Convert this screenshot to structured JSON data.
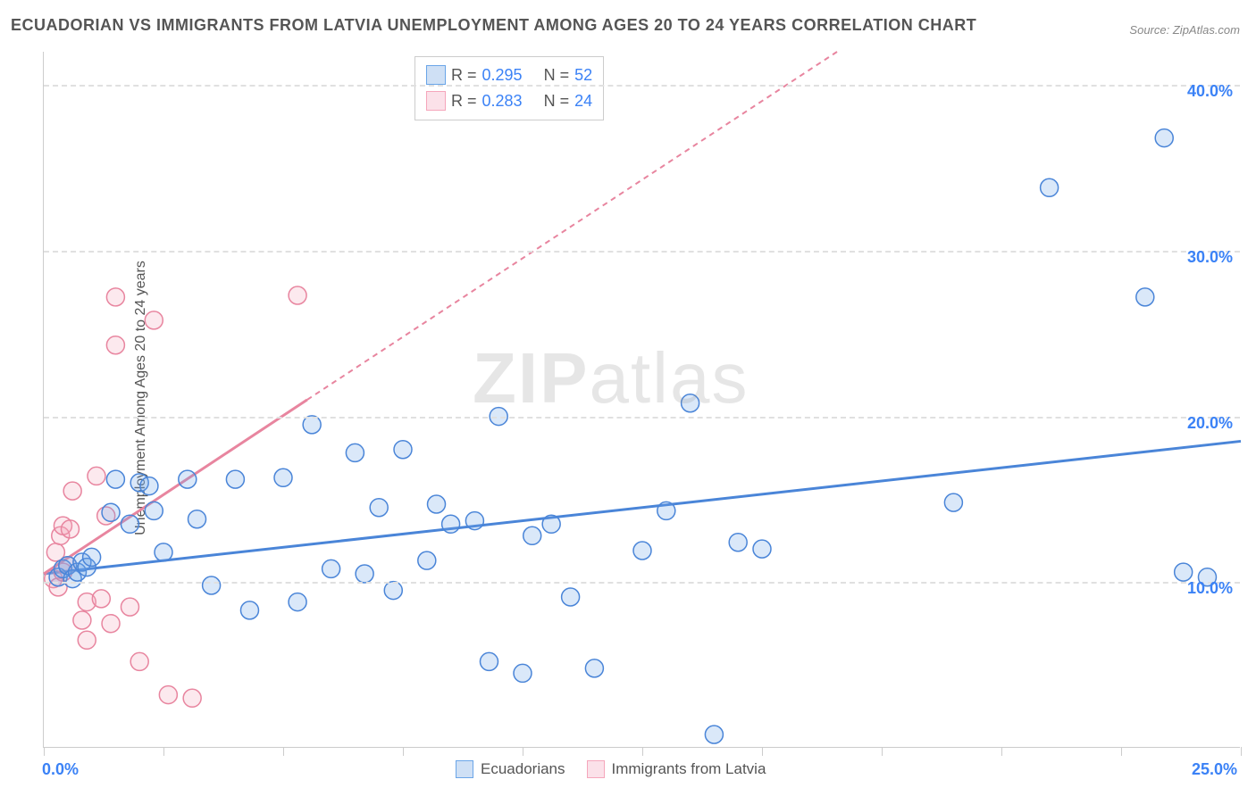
{
  "title": "ECUADORIAN VS IMMIGRANTS FROM LATVIA UNEMPLOYMENT AMONG AGES 20 TO 24 YEARS CORRELATION CHART",
  "source_label": "Source:",
  "source_link": "ZipAtlas.com",
  "y_axis_label": "Unemployment Among Ages 20 to 24 years",
  "watermark": "ZIPatlas",
  "chart": {
    "type": "scatter",
    "background_color": "#ffffff",
    "grid_color": "#e0e0e0",
    "axis_color": "#cccccc",
    "xlim": [
      0,
      25
    ],
    "ylim": [
      0,
      42
    ],
    "y_ticks": [
      10,
      20,
      30,
      40
    ],
    "y_tick_labels": [
      "10.0%",
      "20.0%",
      "30.0%",
      "40.0%"
    ],
    "y_tick_color": "#3b82f6",
    "x_ticks": [
      0,
      2.5,
      5,
      7.5,
      10,
      12.5,
      15,
      17.5,
      20,
      22.5,
      25
    ],
    "x_tick_labels": {
      "0": "0.0%",
      "25": "25.0%"
    },
    "x_tick_color": "#3b82f6",
    "marker_radius": 10,
    "marker_stroke_width": 1.5,
    "marker_fill_opacity": 0.25,
    "line_width": 3,
    "series": [
      {
        "name": "Ecuadorians",
        "color": "#6aa5e8",
        "stroke": "#4a85d8",
        "legend_fill": "#cfe0f5",
        "legend_border": "#6aa5e8",
        "r": 0.295,
        "n": 52,
        "trend_start": [
          0,
          10.5
        ],
        "trend_end": [
          25,
          18.5
        ],
        "trend_dash": "none",
        "points": [
          [
            0.3,
            10.3
          ],
          [
            0.4,
            10.8
          ],
          [
            0.5,
            11
          ],
          [
            0.6,
            10.2
          ],
          [
            0.7,
            10.6
          ],
          [
            0.8,
            11.2
          ],
          [
            0.9,
            10.9
          ],
          [
            1.0,
            11.5
          ],
          [
            1.4,
            14.2
          ],
          [
            1.5,
            16.2
          ],
          [
            1.8,
            13.5
          ],
          [
            2.0,
            16
          ],
          [
            2.2,
            15.8
          ],
          [
            2.3,
            14.3
          ],
          [
            2.5,
            11.8
          ],
          [
            3.0,
            16.2
          ],
          [
            3.2,
            13.8
          ],
          [
            3.5,
            9.8
          ],
          [
            4.0,
            16.2
          ],
          [
            4.3,
            8.3
          ],
          [
            5.0,
            16.3
          ],
          [
            5.3,
            8.8
          ],
          [
            5.6,
            19.5
          ],
          [
            6.0,
            10.8
          ],
          [
            6.5,
            17.8
          ],
          [
            6.7,
            10.5
          ],
          [
            7.0,
            14.5
          ],
          [
            7.3,
            9.5
          ],
          [
            7.5,
            18
          ],
          [
            8.0,
            11.3
          ],
          [
            8.2,
            14.7
          ],
          [
            8.5,
            13.5
          ],
          [
            9.0,
            13.7
          ],
          [
            9.3,
            5.2
          ],
          [
            9.5,
            20
          ],
          [
            10.0,
            4.5
          ],
          [
            10.2,
            12.8
          ],
          [
            10.6,
            13.5
          ],
          [
            11.0,
            9.1
          ],
          [
            11.5,
            4.8
          ],
          [
            12.5,
            11.9
          ],
          [
            13.0,
            14.3
          ],
          [
            13.5,
            20.8
          ],
          [
            14.0,
            0.8
          ],
          [
            14.5,
            12.4
          ],
          [
            15.0,
            12
          ],
          [
            19.0,
            14.8
          ],
          [
            21.0,
            33.8
          ],
          [
            23.0,
            27.2
          ],
          [
            23.4,
            36.8
          ],
          [
            23.8,
            10.6
          ],
          [
            24.3,
            10.3
          ]
        ]
      },
      {
        "name": "Immigrants from Latvia",
        "color": "#f5a6bb",
        "stroke": "#e8859f",
        "legend_fill": "#fbe1e9",
        "legend_border": "#f5a6bb",
        "r": 0.283,
        "n": 24,
        "trend_start": [
          0,
          10.5
        ],
        "trend_end": [
          5.5,
          21.0
        ],
        "trend_extend": [
          25,
          58
        ],
        "trend_dash": "6 5",
        "points": [
          [
            0.2,
            10.2
          ],
          [
            0.25,
            11.8
          ],
          [
            0.3,
            9.7
          ],
          [
            0.35,
            12.8
          ],
          [
            0.4,
            13.4
          ],
          [
            0.4,
            10.6
          ],
          [
            0.5,
            11
          ],
          [
            0.55,
            13.2
          ],
          [
            0.6,
            15.5
          ],
          [
            0.8,
            7.7
          ],
          [
            0.9,
            6.5
          ],
          [
            0.9,
            8.8
          ],
          [
            1.1,
            16.4
          ],
          [
            1.2,
            9
          ],
          [
            1.3,
            14
          ],
          [
            1.4,
            7.5
          ],
          [
            1.5,
            24.3
          ],
          [
            1.5,
            27.2
          ],
          [
            1.8,
            8.5
          ],
          [
            2.0,
            5.2
          ],
          [
            2.3,
            25.8
          ],
          [
            2.6,
            3.2
          ],
          [
            3.1,
            3
          ],
          [
            5.3,
            27.3
          ]
        ]
      }
    ]
  },
  "top_legend": {
    "r_label": "R =",
    "n_label": "N =",
    "r_color": "#3b82f6",
    "text_color": "#555555"
  },
  "bottom_legend": {
    "items": [
      "Ecuadorians",
      "Immigrants from Latvia"
    ]
  }
}
